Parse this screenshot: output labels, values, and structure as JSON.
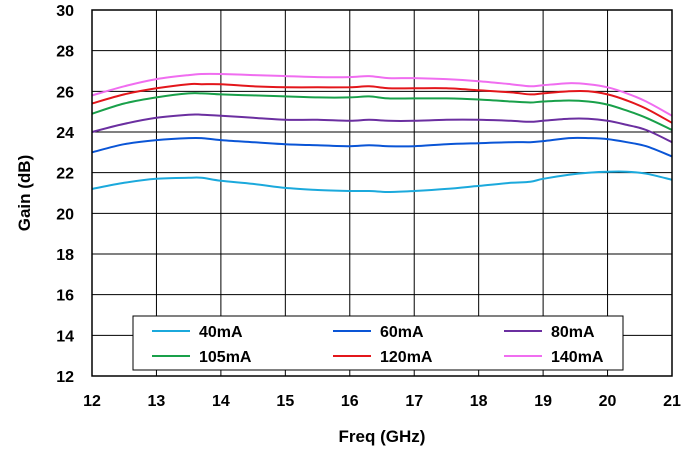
{
  "chart_data": {
    "type": "line",
    "xlabel": "Freq (GHz)",
    "ylabel": "Gain (dB)",
    "xlim": [
      12,
      21
    ],
    "ylim": [
      12,
      30
    ],
    "x_ticks": [
      "12",
      "13",
      "14",
      "15",
      "16",
      "17",
      "18",
      "19",
      "20",
      "21"
    ],
    "y_ticks": [
      "12",
      "14",
      "16",
      "18",
      "20",
      "22",
      "24",
      "26",
      "28",
      "30"
    ],
    "grid": true,
    "legend_position": "bottom-inside",
    "x": [
      12,
      12.5,
      13,
      13.5,
      13.7,
      14,
      14.5,
      15,
      15.5,
      16,
      16.3,
      16.6,
      17,
      17.5,
      18,
      18.5,
      18.8,
      19,
      19.4,
      19.7,
      20,
      20.3,
      20.6,
      21
    ],
    "series": [
      {
        "name": "40mA",
        "color": "#1ba9dc",
        "values": [
          21.2,
          21.5,
          21.7,
          21.75,
          21.75,
          21.6,
          21.45,
          21.25,
          21.15,
          21.1,
          21.1,
          21.05,
          21.1,
          21.2,
          21.35,
          21.5,
          21.55,
          21.7,
          21.9,
          22.0,
          22.05,
          22.05,
          21.95,
          21.65
        ]
      },
      {
        "name": "60mA",
        "color": "#0a55d6",
        "values": [
          23.0,
          23.4,
          23.6,
          23.7,
          23.7,
          23.6,
          23.5,
          23.4,
          23.35,
          23.3,
          23.35,
          23.3,
          23.3,
          23.4,
          23.45,
          23.5,
          23.5,
          23.55,
          23.7,
          23.7,
          23.65,
          23.5,
          23.3,
          22.8
        ]
      },
      {
        "name": "80mA",
        "color": "#6b2fa0",
        "values": [
          24.0,
          24.4,
          24.7,
          24.85,
          24.85,
          24.8,
          24.7,
          24.6,
          24.6,
          24.55,
          24.6,
          24.55,
          24.55,
          24.6,
          24.6,
          24.55,
          24.5,
          24.55,
          24.65,
          24.65,
          24.55,
          24.35,
          24.1,
          23.5
        ]
      },
      {
        "name": "105mA",
        "color": "#19a04a",
        "values": [
          24.9,
          25.4,
          25.7,
          25.9,
          25.9,
          25.85,
          25.8,
          25.75,
          25.7,
          25.7,
          25.75,
          25.65,
          25.65,
          25.65,
          25.6,
          25.5,
          25.45,
          25.5,
          25.55,
          25.5,
          25.35,
          25.05,
          24.7,
          24.1
        ]
      },
      {
        "name": "120mA",
        "color": "#e3161b",
        "values": [
          25.4,
          25.85,
          26.15,
          26.35,
          26.35,
          26.35,
          26.25,
          26.2,
          26.2,
          26.2,
          26.25,
          26.15,
          26.15,
          26.15,
          26.05,
          25.95,
          25.85,
          25.9,
          26.0,
          26.0,
          25.85,
          25.55,
          25.15,
          24.45
        ]
      },
      {
        "name": "140mA",
        "color": "#f06df0",
        "values": [
          25.8,
          26.25,
          26.6,
          26.8,
          26.85,
          26.85,
          26.8,
          26.75,
          26.7,
          26.7,
          26.75,
          26.65,
          26.65,
          26.6,
          26.5,
          26.35,
          26.25,
          26.3,
          26.4,
          26.35,
          26.2,
          25.9,
          25.5,
          24.8
        ]
      }
    ]
  }
}
